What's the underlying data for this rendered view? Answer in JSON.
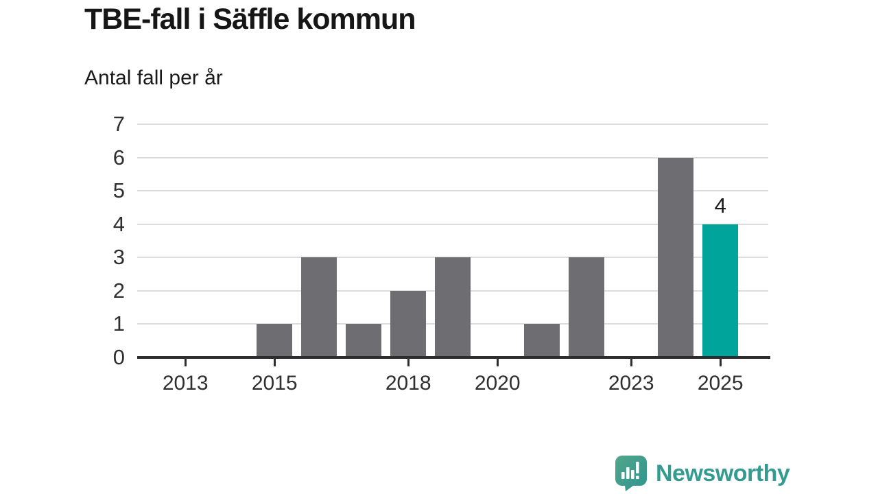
{
  "title": "TBE-fall i Säffle kommun",
  "subtitle": "Antal fall per år",
  "chart_data": {
    "type": "bar",
    "title": "TBE-fall i Säffle kommun",
    "ylabel": "Antal fall per år",
    "xlabel": "",
    "years": [
      2013,
      2014,
      2015,
      2016,
      2017,
      2018,
      2019,
      2020,
      2021,
      2022,
      2023,
      2024,
      2025
    ],
    "values": [
      0,
      0,
      1,
      3,
      1,
      2,
      3,
      0,
      1,
      3,
      0,
      6,
      4
    ],
    "highlight": {
      "year": 2025,
      "value": 4,
      "label": "4",
      "color": "#00a49a"
    },
    "bar_color": "#6d6d72",
    "ylim": [
      0,
      7
    ],
    "y_ticks": [
      0,
      1,
      2,
      3,
      4,
      5,
      6,
      7
    ],
    "x_tick_years": [
      2013,
      2015,
      2018,
      2020,
      2023,
      2025
    ],
    "xlim": [
      2011.92,
      2026.12
    ],
    "grid": "horizontal",
    "gridline_color": "#dcdcdc",
    "axis_color": "#2e2e2e",
    "tick_label_color": "#2f2f2f",
    "legend": "none"
  },
  "footer": {
    "brand": "Newsworthy",
    "brand_color": "#339b90",
    "logo_icon": "newsworthy-speech-bubble-chart-icon",
    "logo_gradient": [
      "#52a68c",
      "#2f948e"
    ]
  }
}
